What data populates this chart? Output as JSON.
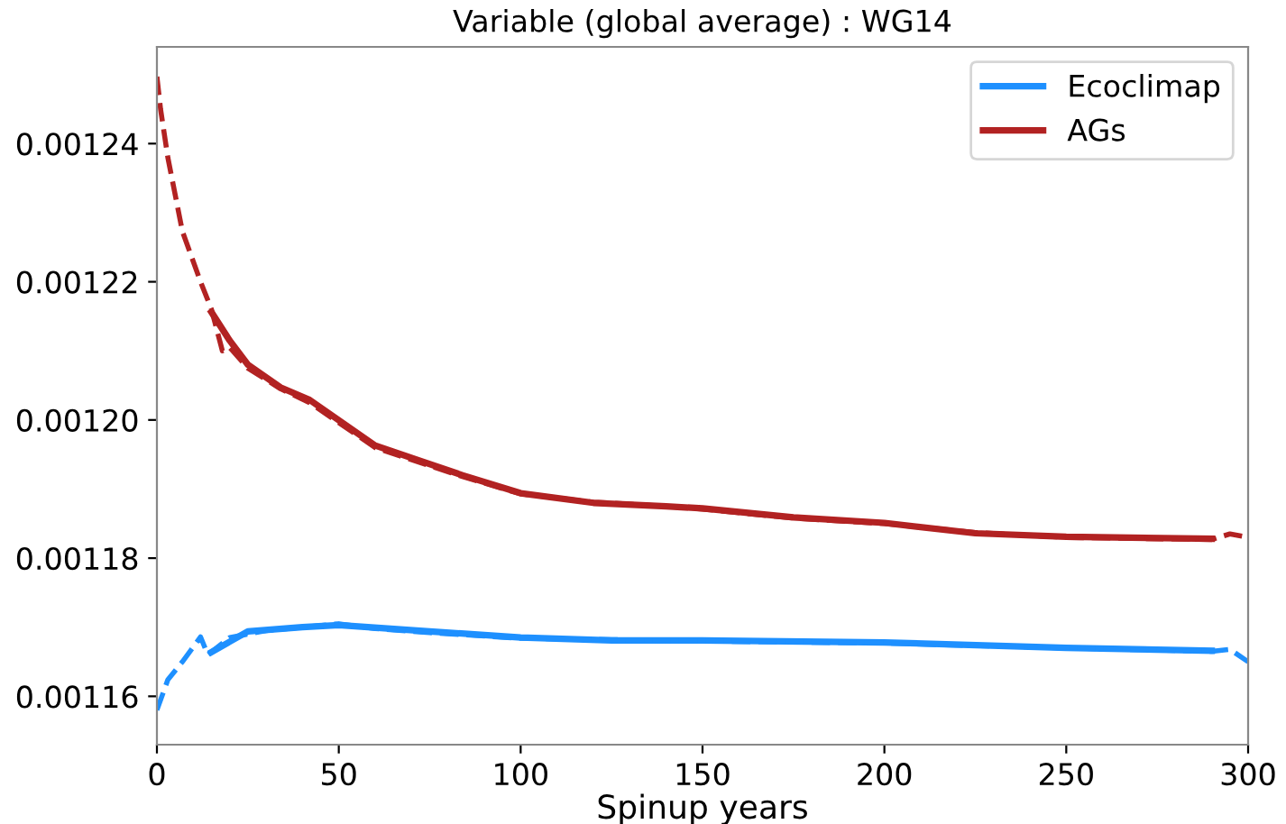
{
  "chart_data": {
    "type": "line",
    "title": "Variable (global average) : WG14",
    "xlabel": "Spinup years",
    "xlim": [
      0,
      300
    ],
    "ylim": [
      0.001153,
      0.001254
    ],
    "xticks": [
      0,
      50,
      100,
      150,
      200,
      250,
      300
    ],
    "yticks": [
      {
        "value": 0.00116,
        "label": "0.00116"
      },
      {
        "value": 0.00118,
        "label": "0.00118"
      },
      {
        "value": 0.0012,
        "label": "0.00120"
      },
      {
        "value": 0.00122,
        "label": "0.00122"
      },
      {
        "value": 0.00124,
        "label": "0.00124"
      }
    ],
    "grid": false,
    "legend": "top right",
    "series": [
      {
        "name": "Ecoclimap",
        "color": "#1e90ff",
        "line_style": "solid",
        "x": [
          15,
          25,
          40,
          50,
          75,
          100,
          125,
          150,
          200,
          250,
          290
        ],
        "values": [
          0.0011664,
          0.0011694,
          0.00117,
          0.0011703,
          0.0011694,
          0.0011685,
          0.0011681,
          0.0011681,
          0.0011678,
          0.001167,
          0.0011666
        ]
      },
      {
        "name": "AGs",
        "color": "#b22222",
        "line_style": "solid",
        "x": [
          15,
          20,
          25,
          34,
          42,
          60,
          84,
          100,
          120,
          140,
          150,
          175,
          200,
          225,
          250,
          290
        ],
        "values": [
          0.0012156,
          0.0012115,
          0.001208,
          0.0012047,
          0.0012029,
          0.0011963,
          0.001192,
          0.0011894,
          0.001188,
          0.0011875,
          0.0011872,
          0.0011859,
          0.0011851,
          0.0011836,
          0.0011831,
          0.0011828
        ]
      },
      {
        "color": "#1e90ff",
        "line_style": "dashed",
        "x": [
          0,
          3,
          7,
          12,
          14,
          20,
          30,
          40,
          50,
          60,
          75,
          100,
          125,
          150,
          200,
          250,
          290,
          295,
          300
        ],
        "values": [
          0.001158,
          0.0011624,
          0.001165,
          0.0011686,
          0.001166,
          0.0011685,
          0.0011695,
          0.00117,
          0.0011705,
          0.0011698,
          0.0011692,
          0.0011684,
          0.0011682,
          0.001168,
          0.0011677,
          0.001167,
          0.0011665,
          0.0011668,
          0.001165
        ]
      },
      {
        "color": "#b22222",
        "line_style": "dashed",
        "x": [
          0,
          1,
          3,
          7,
          12,
          15,
          18,
          20,
          25,
          34,
          42,
          60,
          84,
          100,
          120,
          140,
          150,
          175,
          200,
          225,
          250,
          290,
          295,
          300
        ],
        "values": [
          0.0012497,
          0.001245,
          0.001238,
          0.0012273,
          0.00122,
          0.001216,
          0.00121,
          0.0012105,
          0.0012075,
          0.0012045,
          0.0012025,
          0.001196,
          0.0011918,
          0.0011893,
          0.0011881,
          0.0011875,
          0.0011871,
          0.0011858,
          0.001185,
          0.0011837,
          0.001183,
          0.0011827,
          0.0011835,
          0.001183
        ]
      }
    ]
  }
}
